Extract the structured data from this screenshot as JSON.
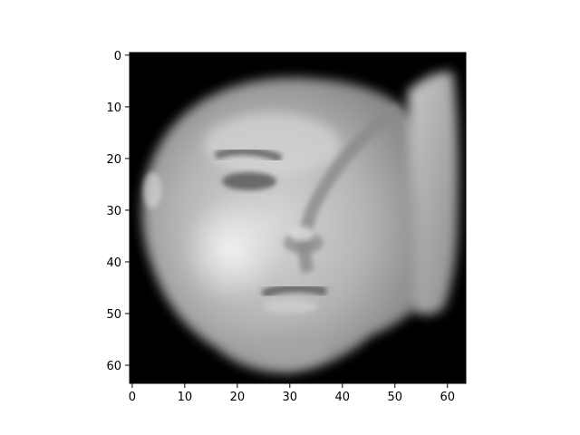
{
  "chart_data": {
    "type": "heatmap",
    "colormap": "gray",
    "image_size": [
      64,
      64
    ],
    "x_ticks": [
      "0",
      "10",
      "20",
      "30",
      "40",
      "50",
      "60"
    ],
    "y_ticks": [
      "0",
      "10",
      "20",
      "30",
      "40",
      "50",
      "60"
    ],
    "xlim": [
      -0.5,
      63.5
    ],
    "ylim": [
      63.5,
      -0.5
    ],
    "grid": false,
    "legend": "none",
    "title": "",
    "xlabel": "",
    "ylabel": ""
  }
}
